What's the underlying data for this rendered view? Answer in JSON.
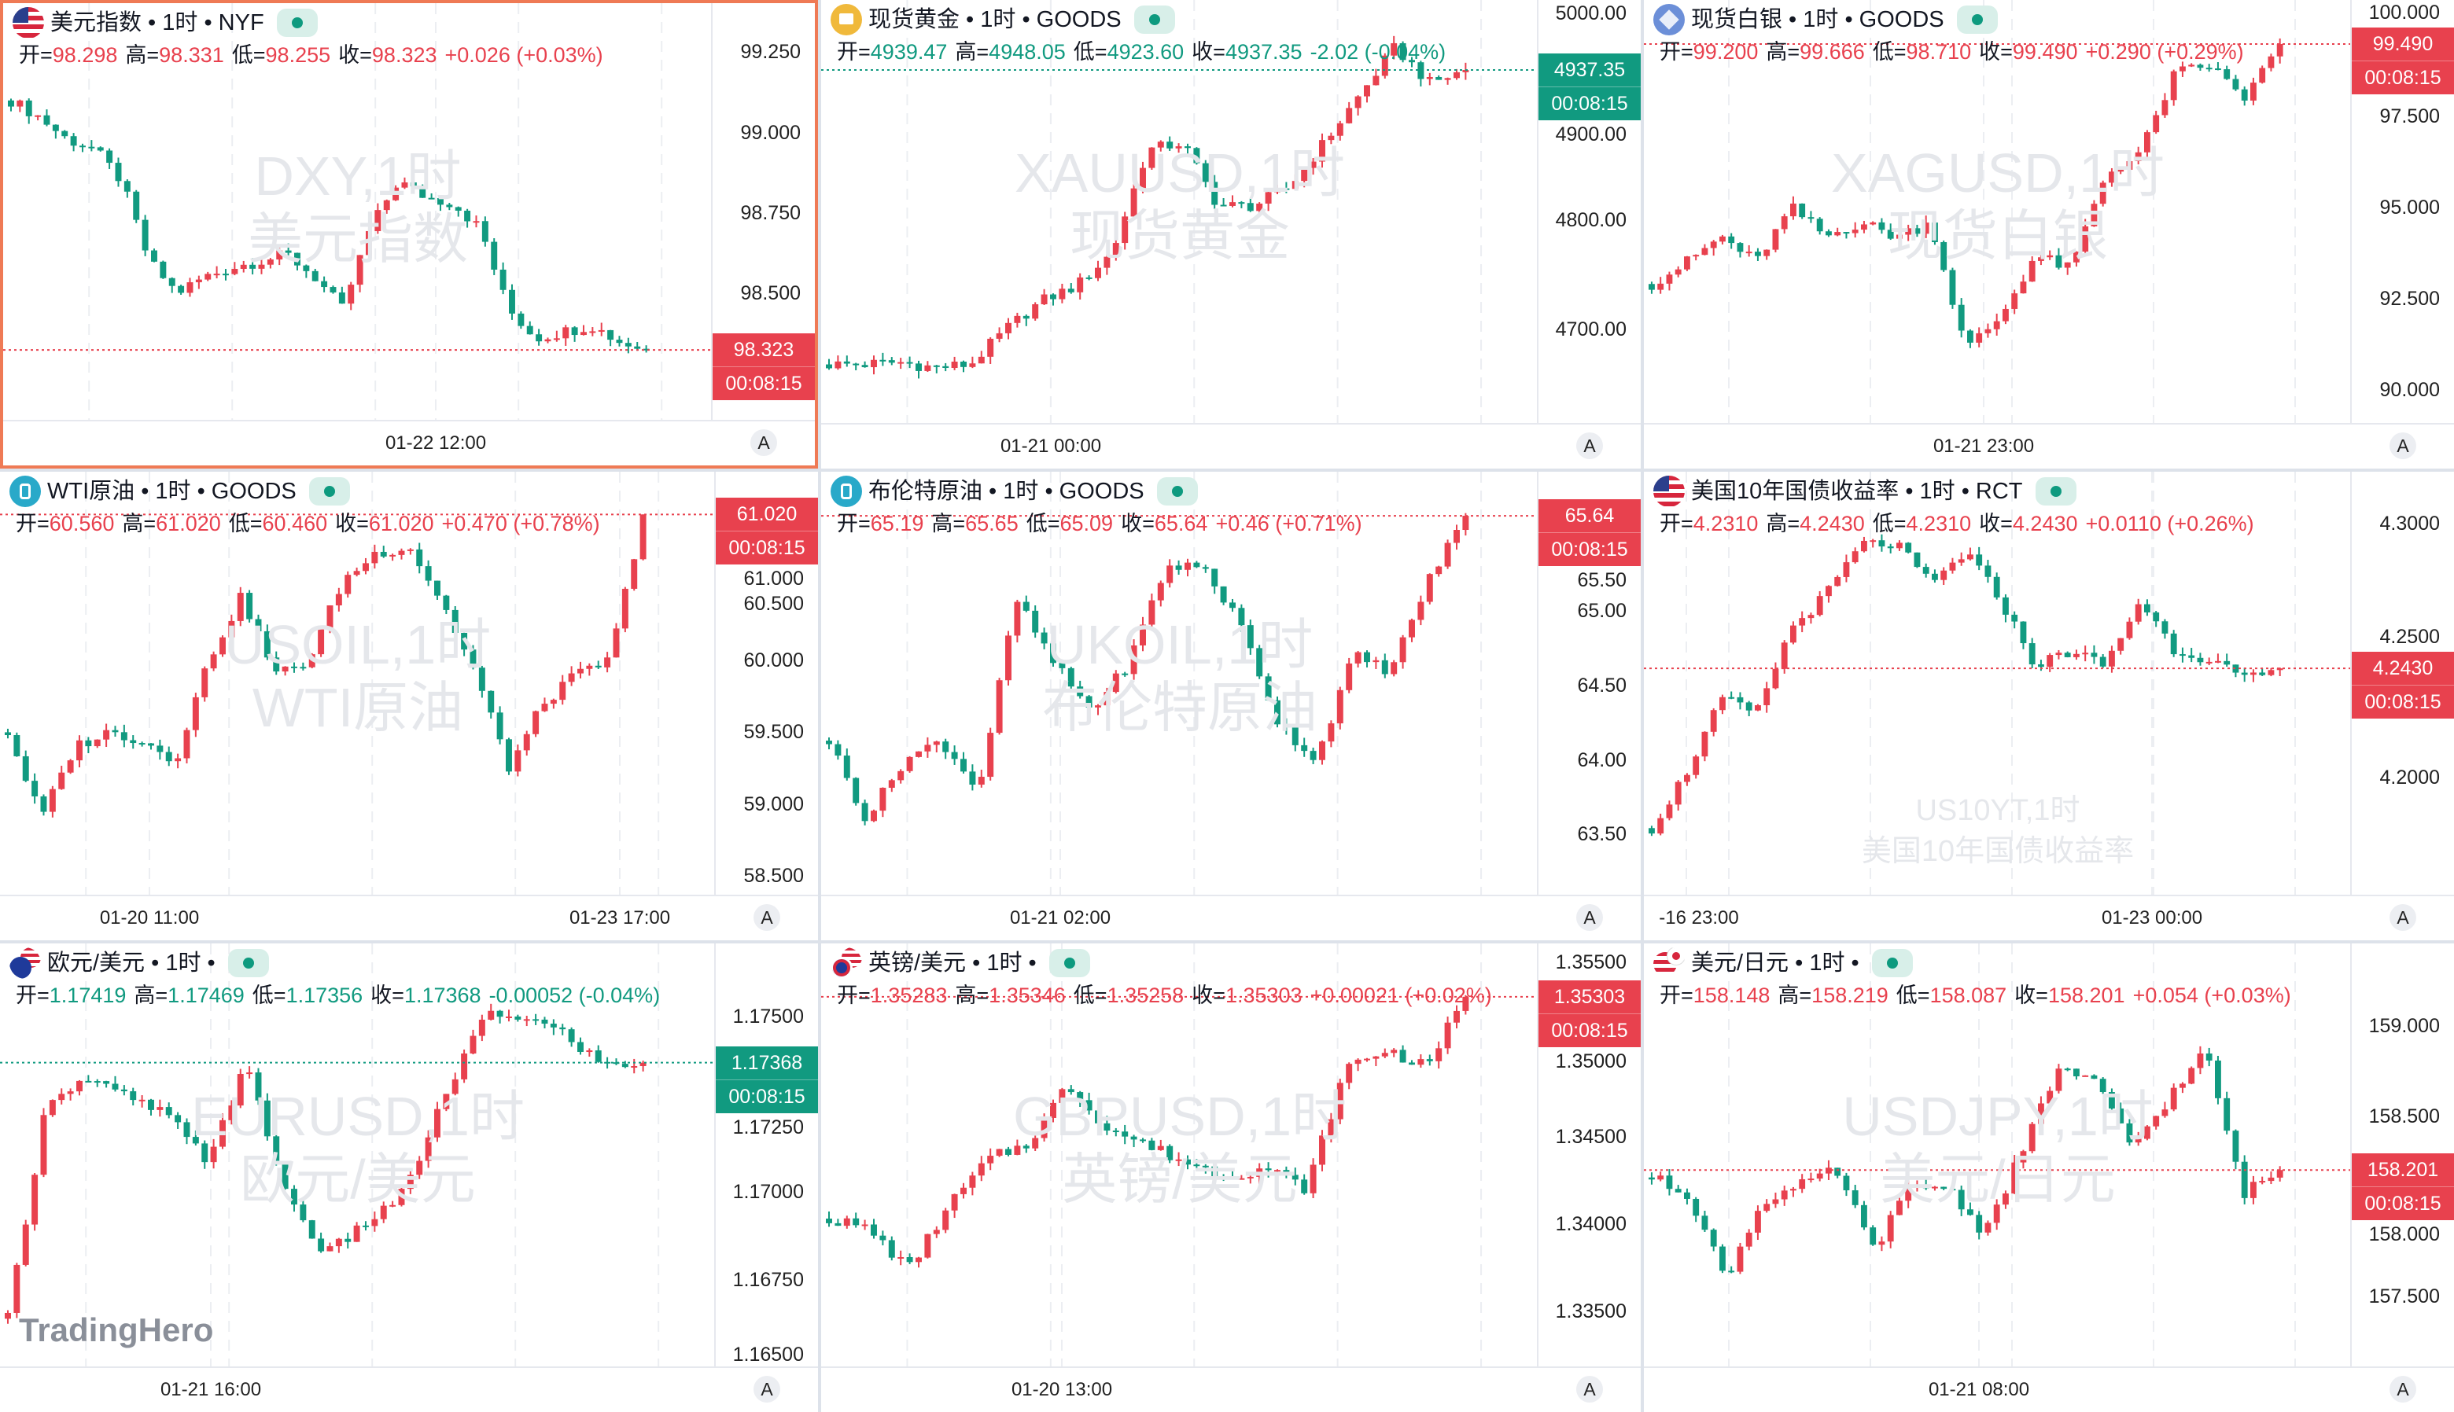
{
  "colors": {
    "up": "#e8414e",
    "down": "#119a80",
    "text": "#131722",
    "selected_border": "#ef7a55"
  },
  "labels": {
    "open": "开=",
    "high": "高=",
    "low": "低=",
    "close": "收=",
    "auto_button": "A"
  },
  "logo": "TradingHero",
  "charts": [
    {
      "id": "dxy",
      "icon": "us-flag-icon",
      "title": "美元指数 • 1时 • NYF",
      "open": "98.298",
      "high": "98.331",
      "low": "98.255",
      "close": "98.323",
      "change": "+0.026 (+0.03%)",
      "trend": "up",
      "selected": true,
      "watermark": [
        "DXY,1时",
        "美元指数"
      ],
      "price_label": "98.323",
      "countdown": "00:08:15",
      "time_labels": [
        "01-22 12:00"
      ],
      "chart_data": {
        "type": "candlestick",
        "ylim": [
          98.081,
          99.403
        ],
        "y_ticks": [
          "99.250",
          "99.000",
          "98.750",
          "98.500"
        ],
        "last": 98.323,
        "closes": [
          99.1,
          99.05,
          98.98,
          98.95,
          98.85,
          98.6,
          98.5,
          98.55,
          98.58,
          98.6,
          98.62,
          98.55,
          98.45,
          98.7,
          98.85,
          98.8,
          98.78,
          98.7,
          98.45,
          98.36,
          98.38,
          98.4,
          98.35,
          98.323
        ]
      }
    },
    {
      "id": "xauusd",
      "icon": "gold-icon",
      "title": "现货黄金 • 1时 • GOODS",
      "open": "4939.47",
      "high": "4948.05",
      "low": "4923.60",
      "close": "4937.35",
      "change": "-2.02 (-0.04%)",
      "trend": "down",
      "watermark": [
        "XAUUSD,1时",
        "现货黄金"
      ],
      "price_label": "4937.35",
      "countdown": "00:08:15",
      "time_labels": [
        "01-21 00:00"
      ],
      "chart_data": {
        "type": "candlestick",
        "ylim": [
          4613,
          5001.4
        ],
        "y_ticks": [
          "5000.00",
          "4900.00",
          "4800.00",
          "4700.00"
        ],
        "last": 4937.35,
        "closes": [
          4668,
          4668,
          4670,
          4665,
          4668,
          4700,
          4726,
          4740,
          4770,
          4864,
          4871,
          4813,
          4813,
          4830,
          4871,
          4914,
          4958,
          4925,
          4937.35
        ]
      }
    },
    {
      "id": "xagusd",
      "icon": "silver-icon",
      "title": "现货白银 • 1时 • GOODS",
      "open": "99.200",
      "high": "99.666",
      "low": "98.710",
      "close": "99.490",
      "change": "+0.290 (+0.29%)",
      "trend": "up",
      "watermark": [
        "XAGUSD,1时",
        "现货白银"
      ],
      "price_label": "99.490",
      "countdown": "00:08:15",
      "time_labels": [
        "01-21 23:00"
      ],
      "chart_data": {
        "type": "candlestick",
        "ylim": [
          89.04,
          100.7
        ],
        "y_ticks": [
          "100.000",
          "97.500",
          "95.000",
          "92.500",
          "90.000"
        ],
        "last": 99.49,
        "closes": [
          92.9,
          93.5,
          94.2,
          93.5,
          95.0,
          94.2,
          94.6,
          94.2,
          94.6,
          91.1,
          92.0,
          93.7,
          93.3,
          95.9,
          96.5,
          98.7,
          98.9,
          98.0,
          99.49
        ]
      }
    },
    {
      "id": "usoil",
      "icon": "oil-icon",
      "title": "WTI原油 • 1时 • GOODS",
      "open": "60.560",
      "high": "61.020",
      "low": "60.460",
      "close": "61.020",
      "change": "+0.470 (+0.78%)",
      "trend": "up",
      "watermark": [
        "USOIL,1时",
        "WTI原油"
      ],
      "price_label": "61.020",
      "countdown": "00:08:15",
      "time_labels": [
        "01-20 11:00",
        "01-23 17:00"
      ],
      "chart_data": {
        "type": "candlestick",
        "ylim": [
          58.356,
          61.318
        ],
        "y_ticks": [
          "61.000",
          "60.500",
          "60.000",
          "59.500",
          "59.000",
          "58.500"
        ],
        "last": 61.02,
        "closes": [
          59.5,
          58.9,
          59.4,
          59.5,
          59.45,
          59.3,
          60.0,
          60.45,
          59.9,
          60.0,
          60.55,
          60.75,
          60.8,
          60.4,
          59.9,
          59.25,
          59.7,
          59.9,
          60.0,
          61.02
        ]
      }
    },
    {
      "id": "ukoil",
      "icon": "oil-icon",
      "title": "布伦特原油 • 1时 • GOODS",
      "open": "65.19",
      "high": "65.65",
      "low": "65.09",
      "close": "65.64",
      "change": "+0.46 (+0.71%)",
      "trend": "up",
      "watermark": [
        "UKOIL,1时",
        "布伦特原油"
      ],
      "price_label": "65.64",
      "countdown": "00:08:15",
      "time_labels": [
        "01-21 02:00"
      ],
      "chart_data": {
        "type": "candlestick",
        "ylim": [
          63.085,
          65.936
        ],
        "y_ticks": [
          "65.50",
          "65.00",
          "64.50",
          "64.00",
          "63.50"
        ],
        "last": 65.64,
        "closes": [
          64.13,
          63.6,
          64.0,
          64.13,
          63.8,
          65.08,
          64.65,
          64.33,
          64.65,
          65.3,
          65.3,
          64.9,
          64.25,
          64.0,
          64.7,
          64.6,
          65.2,
          65.64
        ]
      }
    },
    {
      "id": "us10y",
      "icon": "us-flag-icon",
      "title": "美国10年国债收益率 • 1时 • RCT",
      "open": "4.2310",
      "high": "4.2430",
      "low": "4.2310",
      "close": "4.2430",
      "change": "+0.0110 (+0.26%)",
      "trend": "up",
      "small_watermark": true,
      "watermark": [
        "US10YT,1时",
        "美国10年国债收益率"
      ],
      "price_label": "4.2430",
      "countdown": "00:08:15",
      "time_labels": [
        "-16 23:00",
        "01-23 00:00"
      ],
      "chart_data": {
        "type": "candlestick",
        "ylim": [
          4.1531,
          4.3206
        ],
        "y_ticks": [
          "4.3000",
          "4.2500",
          "4.2000"
        ],
        "last": 4.243,
        "closes": [
          4.18,
          4.202,
          4.231,
          4.225,
          4.259,
          4.272,
          4.292,
          4.292,
          4.276,
          4.289,
          4.27,
          4.244,
          4.25,
          4.244,
          4.27,
          4.25,
          4.247,
          4.238,
          4.243
        ]
      }
    },
    {
      "id": "eurusd",
      "icon": "eu-us-flag-icon",
      "title": "欧元/美元 • 1时 •",
      "open": "1.17419",
      "high": "1.17469",
      "low": "1.17356",
      "close": "1.17368",
      "change": "-0.00052 (-0.04%)",
      "trend": "down",
      "watermark": [
        "EURUSD,1时",
        "欧元/美元"
      ],
      "price_label": "1.17368",
      "countdown": "00:08:15",
      "time_labels": [
        "01-21 16:00"
      ],
      "chart_data": {
        "type": "candlestick",
        "ylim": [
          1.165,
          1.17707
        ],
        "y_ticks": [
          "1.17500",
          "1.17250",
          "1.17000",
          "1.16750",
          "1.16500"
        ],
        "last": 1.17368,
        "closes": [
          1.1664,
          1.1727,
          1.1732,
          1.1727,
          1.1722,
          1.1709,
          1.1736,
          1.17,
          1.1682,
          1.1691,
          1.17,
          1.1727,
          1.175,
          1.175,
          1.1745,
          1.1736,
          1.17368
        ]
      }
    },
    {
      "id": "gbpusd",
      "icon": "gb-us-flag-icon",
      "title": "英镑/美元 • 1时 •",
      "open": "1.35283",
      "high": "1.35346",
      "low": "1.35258",
      "close": "1.35303",
      "change": "+0.00021 (+0.02%)",
      "trend": "up",
      "watermark": [
        "GBPUSD,1时",
        "英镑/美元"
      ],
      "price_label": "1.35303",
      "countdown": "00:08:15",
      "time_labels": [
        "01-20 13:00"
      ],
      "chart_data": {
        "type": "candlestick",
        "ylim": [
          1.33173,
          1.35609
        ],
        "y_ticks": [
          "1.35500",
          "1.35000",
          "1.34500",
          "1.34000",
          "1.33500"
        ],
        "last": 1.35303,
        "closes": [
          1.3403,
          1.3397,
          1.3374,
          1.341,
          1.3437,
          1.3446,
          1.348,
          1.3455,
          1.3445,
          1.3435,
          1.3428,
          1.3432,
          1.342,
          1.349,
          1.35,
          1.349,
          1.35303
        ]
      }
    },
    {
      "id": "usdjpy",
      "icon": "us-jp-flag-icon",
      "title": "美元/日元 • 1时 •",
      "open": "158.148",
      "high": "158.219",
      "low": "158.087",
      "close": "158.201",
      "change": "+0.054 (+0.03%)",
      "trend": "up",
      "watermark": [
        "USDJPY,1时",
        "美元/日元"
      ],
      "price_label": "158.201",
      "countdown": "00:08:15",
      "time_labels": [
        "01-21 08:00"
      ],
      "chart_data": {
        "type": "candlestick",
        "ylim": [
          157.105,
          159.456
        ],
        "y_ticks": [
          "159.000",
          "158.500",
          "158.000",
          "157.500"
        ],
        "last": 158.201,
        "closes": [
          158.16,
          158.07,
          157.6,
          158.03,
          158.11,
          158.2,
          157.76,
          158.11,
          158.11,
          157.85,
          158.29,
          158.77,
          158.68,
          158.33,
          158.6,
          158.86,
          158.07,
          158.201
        ]
      }
    }
  ]
}
